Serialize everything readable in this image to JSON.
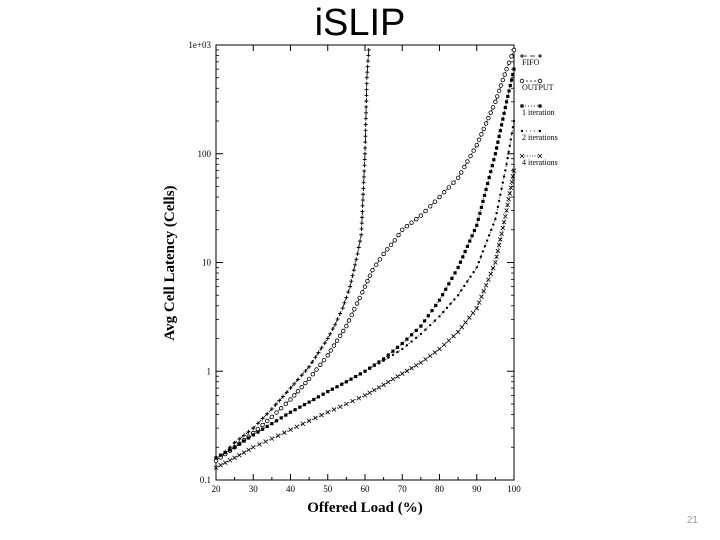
{
  "slide": {
    "title": "iSLIP",
    "page_number": "21"
  },
  "chart_data": {
    "type": "line",
    "title": "",
    "xlabel": "Offered Load (%)",
    "ylabel": "Avg Cell Latency (Cells)",
    "xlim": [
      20,
      100
    ],
    "ylim": [
      0.1,
      1000
    ],
    "yscale": "log",
    "x_ticks": [
      "20",
      "30",
      "40",
      "50",
      "60",
      "70",
      "80",
      "90",
      "100"
    ],
    "y_ticks": [
      "0.1",
      "1",
      "10",
      "100",
      "1e+03"
    ],
    "grid": false,
    "legend_position": "right",
    "series": [
      {
        "name": "FIFO",
        "marker": "plus",
        "color": "#000000",
        "x": [
          20,
          25,
          30,
          35,
          40,
          45,
          50,
          52,
          54,
          56,
          58,
          59,
          60,
          60.5,
          61
        ],
        "y": [
          0.15,
          0.22,
          0.3,
          0.45,
          0.7,
          1.1,
          2.0,
          2.7,
          3.8,
          6,
          12,
          18,
          100,
          500,
          900
        ]
      },
      {
        "name": "OUTPUT",
        "marker": "circle",
        "color": "#000000",
        "x": [
          20,
          25,
          30,
          35,
          40,
          45,
          50,
          55,
          60,
          62,
          65,
          68,
          70,
          75,
          80,
          85,
          90,
          95,
          98,
          100
        ],
        "y": [
          0.15,
          0.2,
          0.27,
          0.38,
          0.55,
          0.85,
          1.4,
          2.6,
          6,
          8.5,
          12,
          16,
          20,
          27,
          40,
          60,
          120,
          300,
          600,
          900
        ]
      },
      {
        "name": "1 iteration",
        "marker": "square",
        "color": "#000000",
        "x": [
          20,
          25,
          30,
          35,
          40,
          45,
          50,
          55,
          60,
          65,
          70,
          75,
          80,
          85,
          90,
          95,
          98,
          100
        ],
        "y": [
          0.16,
          0.2,
          0.26,
          0.33,
          0.42,
          0.52,
          0.65,
          0.8,
          1.0,
          1.3,
          1.8,
          2.6,
          4.5,
          9,
          22,
          100,
          300,
          600
        ]
      },
      {
        "name": "2 iterations",
        "marker": "dot",
        "color": "#000000",
        "x": [
          20,
          25,
          30,
          35,
          40,
          45,
          50,
          55,
          60,
          65,
          70,
          75,
          80,
          85,
          90,
          95,
          98,
          100
        ],
        "y": [
          0.16,
          0.2,
          0.26,
          0.33,
          0.42,
          0.52,
          0.65,
          0.8,
          1.0,
          1.25,
          1.6,
          2.2,
          3.2,
          5,
          9,
          25,
          80,
          200
        ]
      },
      {
        "name": "4 iterations",
        "marker": "x",
        "color": "#000000",
        "x": [
          20,
          25,
          30,
          35,
          40,
          45,
          50,
          55,
          60,
          65,
          70,
          75,
          80,
          85,
          90,
          95,
          98,
          100
        ],
        "y": [
          0.13,
          0.16,
          0.2,
          0.24,
          0.29,
          0.35,
          0.42,
          0.5,
          0.6,
          0.75,
          0.95,
          1.2,
          1.6,
          2.3,
          3.8,
          10,
          30,
          70
        ]
      }
    ]
  }
}
